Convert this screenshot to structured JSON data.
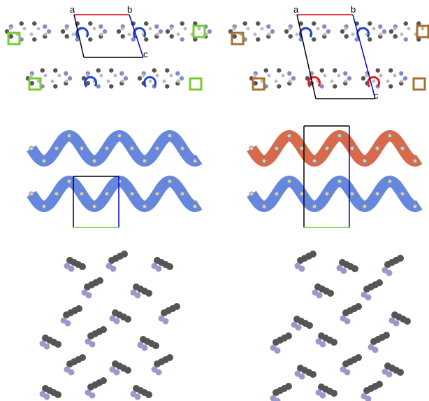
{
  "panels": [
    {
      "axis_labels": [
        "a",
        "b",
        "c"
      ]
    },
    {
      "axis_labels": [
        "a",
        "b",
        "c"
      ]
    }
  ]
}
